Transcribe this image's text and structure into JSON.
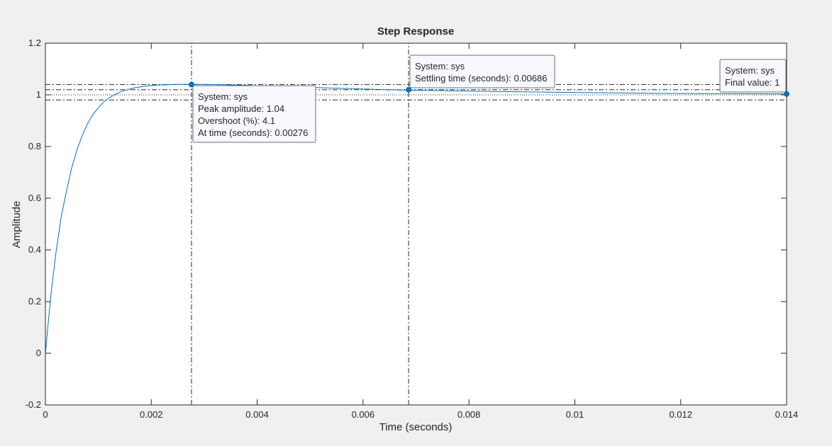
{
  "chart_data": {
    "type": "line",
    "title": "Step Response",
    "xlabel": "Time (seconds)",
    "ylabel": "Amplitude",
    "xlim": [
      0,
      0.014
    ],
    "ylim": [
      -0.2,
      1.2
    ],
    "x_ticks": [
      0,
      0.002,
      0.004,
      0.006,
      0.008,
      0.01,
      0.012,
      0.014
    ],
    "x_tick_labels": [
      "0",
      "0.002",
      "0.004",
      "0.006",
      "0.008",
      "0.01",
      "0.012",
      "0.014"
    ],
    "y_ticks": [
      -0.2,
      0,
      0.2,
      0.4,
      0.6,
      0.8,
      1,
      1.2
    ],
    "y_tick_labels": [
      "-0.2",
      "0",
      "0.2",
      "0.4",
      "0.6",
      "0.8",
      "1",
      "1.2"
    ],
    "grid": false,
    "series": [
      {
        "color": "#0072bd",
        "x": [
          0,
          0.0001,
          0.0002,
          0.0003,
          0.0004,
          0.0005,
          0.0006,
          0.0007,
          0.0008,
          0.0009,
          0.001,
          0.0011,
          0.0012,
          0.0013,
          0.0014,
          0.0015,
          0.0016,
          0.0017,
          0.0018,
          0.0019,
          0.002,
          0.0021,
          0.0022,
          0.0023,
          0.0024,
          0.0025,
          0.0026,
          0.00276,
          0.003,
          0.0032,
          0.0034,
          0.0036,
          0.0038,
          0.004,
          0.0045,
          0.005,
          0.0055,
          0.006,
          0.0065,
          0.00686,
          0.0075,
          0.008,
          0.0085,
          0.009,
          0.0095,
          0.01,
          0.0105,
          0.011,
          0.0115,
          0.012,
          0.0125,
          0.013,
          0.0135,
          0.014
        ],
        "y": [
          0,
          0.22,
          0.39,
          0.53,
          0.63,
          0.72,
          0.79,
          0.845,
          0.89,
          0.925,
          0.95,
          0.972,
          0.988,
          1.0,
          1.01,
          1.017,
          1.023,
          1.028,
          1.031,
          1.034,
          1.036,
          1.0375,
          1.0385,
          1.0393,
          1.0398,
          1.0402,
          1.0405,
          1.0406,
          1.0404,
          1.0398,
          1.039,
          1.038,
          1.0368,
          1.0355,
          1.032,
          1.029,
          1.0258,
          1.0228,
          1.02,
          1.018,
          1.0165,
          1.0148,
          1.0132,
          1.0117,
          1.0104,
          1.0092,
          1.0081,
          1.0071,
          1.0063,
          1.0056,
          1.005,
          1.0045,
          1.004,
          1.0035
        ]
      }
    ],
    "reference_lines": {
      "horizontal_dashdot": [
        1.04,
        1.02,
        0.98
      ],
      "horizontal_dotted": [
        1.0
      ],
      "vertical_dashdot": [
        0.00276,
        0.00686
      ]
    },
    "markers": [
      {
        "x": 0.00276,
        "y": 1.04
      },
      {
        "x": 0.00686,
        "y": 1.02
      },
      {
        "x": 0.014,
        "y": 1.0035
      }
    ],
    "annotations": [
      {
        "name": "peak-datatip",
        "lines": [
          "System: sys",
          "Peak amplitude: 1.04",
          "Overshoot (%): 4.1",
          "At time (seconds): 0.00276"
        ]
      },
      {
        "name": "settling-datatip",
        "lines": [
          "System: sys",
          "Settling time (seconds): 0.00686"
        ]
      },
      {
        "name": "final-value-datatip",
        "lines": [
          "System: sys",
          "Final value: 1"
        ]
      }
    ]
  }
}
